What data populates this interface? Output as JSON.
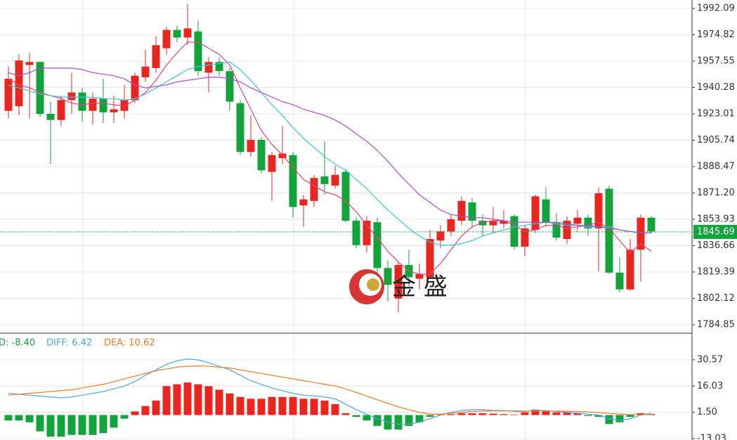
{
  "chart_data": [
    {
      "type": "candlestick",
      "watermark": "金 盛",
      "open": [
        1925,
        1928,
        1955,
        1957,
        1923,
        1919,
        1932,
        1937,
        1925,
        1933,
        1924,
        1925,
        1932,
        1947,
        1953,
        1966,
        1978,
        1973,
        1977,
        1950,
        1957,
        1951,
        1930,
        1898,
        1906,
        1885,
        1894,
        1896,
        1863,
        1866,
        1882,
        1876,
        1885,
        1853,
        1837,
        1852,
        1822,
        1802,
        1824,
        1815,
        1816,
        1840,
        1846,
        1853,
        1865,
        1853,
        1850,
        1851,
        1856,
        1836,
        1847,
        1867,
        1852,
        1841,
        1851,
        1855,
        1848,
        1874,
        1819,
        1808,
        1834,
        1855
      ],
      "high": [
        1954,
        1962,
        1963,
        1957,
        1931,
        1935,
        1950,
        1940,
        1937,
        1946,
        1935,
        1942,
        1950,
        1965,
        1974,
        1980,
        1981,
        1995,
        1984,
        1960,
        1960,
        1953,
        1932,
        1922,
        1908,
        1898,
        1915,
        1898,
        1870,
        1883,
        1905,
        1889,
        1887,
        1855,
        1856,
        1855,
        1827,
        1826,
        1834,
        1825,
        1847,
        1850,
        1857,
        1869,
        1868,
        1857,
        1862,
        1860,
        1857,
        1850,
        1870,
        1875,
        1858,
        1856,
        1860,
        1857,
        1875,
        1876,
        1829,
        1841,
        1857,
        1856
      ],
      "low": [
        1920,
        1922,
        1920,
        1921,
        1890,
        1915,
        1923,
        1918,
        1916,
        1917,
        1917,
        1920,
        1930,
        1944,
        1950,
        1962,
        1970,
        1968,
        1948,
        1937,
        1948,
        1925,
        1896,
        1895,
        1884,
        1866,
        1890,
        1855,
        1849,
        1862,
        1870,
        1874,
        1852,
        1835,
        1832,
        1815,
        1800,
        1793,
        1810,
        1808,
        1815,
        1835,
        1843,
        1850,
        1848,
        1843,
        1845,
        1848,
        1834,
        1830,
        1845,
        1849,
        1840,
        1838,
        1846,
        1843,
        1820,
        1818,
        1806,
        1807,
        1813,
        1845
      ],
      "close": [
        1946,
        1958,
        1957,
        1923,
        1919,
        1932,
        1937,
        1925,
        1933,
        1924,
        1926,
        1932,
        1948,
        1954,
        1968,
        1978,
        1973,
        1979,
        1951,
        1957,
        1951,
        1931,
        1898,
        1906,
        1886,
        1896,
        1897,
        1862,
        1867,
        1881,
        1877,
        1883,
        1853,
        1837,
        1853,
        1822,
        1811,
        1824,
        1816,
        1818,
        1841,
        1846,
        1854,
        1866,
        1853,
        1850,
        1853,
        1853,
        1836,
        1848,
        1869,
        1852,
        1842,
        1853,
        1855,
        1848,
        1871,
        1819,
        1808,
        1834,
        1855,
        1846
      ],
      "up_color": "#e8251f",
      "down_color": "#12a33a",
      "series": [
        {
          "color": "#e8407a",
          "values": [
            1946,
            1942,
            1940,
            1937,
            1935,
            1933,
            1930,
            1929,
            1930,
            1930,
            1929,
            1928,
            1932,
            1937,
            1945,
            1955,
            1963,
            1970,
            1970,
            1966,
            1962,
            1955,
            1940,
            1926,
            1912,
            1903,
            1896,
            1888,
            1880,
            1876,
            1872,
            1870,
            1866,
            1859,
            1850,
            1842,
            1833,
            1826,
            1820,
            1818,
            1818,
            1825,
            1834,
            1843,
            1849,
            1852,
            1853,
            1853,
            1850,
            1846,
            1847,
            1850,
            1850,
            1848,
            1849,
            1850,
            1852,
            1848,
            1840,
            1832,
            1838,
            1833
          ]
        },
        {
          "color": "#3cc4dc",
          "values": [
            1942,
            1940,
            1938,
            1936,
            1935,
            1934,
            1934,
            1934,
            1934,
            1933,
            1933,
            1932,
            1933,
            1936,
            1940,
            1944,
            1948,
            1952,
            1954,
            1955,
            1956,
            1957,
            1952,
            1945,
            1937,
            1929,
            1922,
            1914,
            1907,
            1901,
            1895,
            1890,
            1886,
            1880,
            1874,
            1867,
            1860,
            1854,
            1848,
            1843,
            1839,
            1837,
            1837,
            1838,
            1840,
            1843,
            1845,
            1847,
            1849,
            1850,
            1851,
            1852,
            1851,
            1850,
            1850,
            1849,
            1849,
            1849,
            1847,
            1846,
            1845,
            1845
          ]
        },
        {
          "color": "#b04ac8",
          "values": [
            1950,
            1948,
            1950,
            1953,
            1953,
            1953,
            1953,
            1952,
            1950,
            1949,
            1948,
            1946,
            1942,
            1940,
            1941,
            1942,
            1944,
            1945,
            1946,
            1947,
            1947,
            1946,
            1944,
            1940,
            1937,
            1934,
            1931,
            1929,
            1926,
            1924,
            1922,
            1919,
            1915,
            1910,
            1905,
            1899,
            1892,
            1884,
            1877,
            1870,
            1865,
            1860,
            1857,
            1856,
            1855,
            1855,
            1854,
            1853,
            1852,
            1852,
            1852,
            1852,
            1852,
            1851,
            1850,
            1850,
            1849,
            1848,
            1847,
            1846,
            1845,
            1845
          ]
        }
      ],
      "last_price": 1845.69,
      "last_price_color": "#12a33a",
      "ylim": [
        1779.8,
        1997.6
      ],
      "yticks": [
        1992.09,
        1974.82,
        1957.55,
        {
          "value": 1940.28,
          "label": "1940.28"
        },
        1923.01,
        1905.74,
        1888.47,
        {
          "value": 1871.2,
          "label": "1871.20"
        },
        1853.93,
        1836.66,
        1819.39,
        1802.12,
        1784.85
      ],
      "grid": true
    },
    {
      "type": "macd",
      "histogram": {
        "name": "D: -8.40",
        "color": "#12a33a",
        "up_color": "#e8251f",
        "down_color": "#12a33a",
        "values": [
          -3,
          -3,
          -4,
          -9,
          -12,
          -12,
          -11,
          -11,
          -11,
          -10,
          -7,
          -2,
          2,
          5,
          8,
          16,
          17,
          18,
          17,
          16,
          14,
          12,
          10,
          9,
          9,
          10,
          10,
          10,
          9,
          9,
          8,
          6,
          1,
          -1,
          -3,
          -6,
          -8,
          -8,
          -6,
          -4,
          -1,
          0.3,
          0.5,
          1,
          1,
          1,
          0.8,
          0.5,
          0.3,
          1.5,
          3,
          2,
          1.5,
          1.5,
          1,
          -0.5,
          -1,
          -5,
          -4,
          -1,
          1,
          0.5
        ]
      },
      "series": [
        {
          "name": "DIFF: 6.42",
          "color": "#4aa8e8",
          "values": [
            12,
            11.5,
            11,
            10.5,
            10,
            9.5,
            10,
            11,
            12,
            13,
            14.5,
            16,
            18.5,
            22,
            25,
            28,
            30,
            31,
            30.5,
            29,
            27,
            25,
            22,
            19,
            17,
            15,
            13.5,
            12,
            11,
            10.5,
            10,
            9,
            6,
            3,
            0.5,
            -2,
            -4,
            -5,
            -5,
            -4,
            -2,
            0,
            1.5,
            2.5,
            3,
            3,
            2.5,
            2.5,
            2,
            2,
            2.5,
            2.5,
            2,
            1.5,
            1,
            0.5,
            0,
            -2,
            -3,
            -2,
            0,
            1
          ]
        },
        {
          "name": "DEA: 10.62",
          "color": "#f07a20",
          "values": [
            11,
            11.5,
            12,
            12.5,
            13,
            13.5,
            14,
            15,
            16,
            17,
            18.5,
            20,
            21.5,
            23,
            24.5,
            25.5,
            26.5,
            27,
            27.2,
            27,
            26.5,
            26,
            25,
            24,
            23,
            22,
            21,
            20,
            19,
            18,
            17,
            16,
            14.5,
            12.5,
            10.5,
            8.5,
            6.5,
            4.5,
            3,
            1.5,
            0.5,
            0.5,
            1,
            1.5,
            2,
            2.2,
            2.3,
            2.3,
            2.3,
            2.2,
            2.2,
            2.3,
            2.2,
            2.1,
            1.9,
            1.7,
            1.4,
            1,
            0.5,
            0.2,
            0.2,
            0.3
          ]
        }
      ],
      "ylim": [
        -13.8,
        44.9
      ],
      "yticks": [
        30.57,
        16.03,
        {
          "value": 1.5,
          "label": "1.50"
        },
        -13.03
      ],
      "grid": true
    }
  ]
}
